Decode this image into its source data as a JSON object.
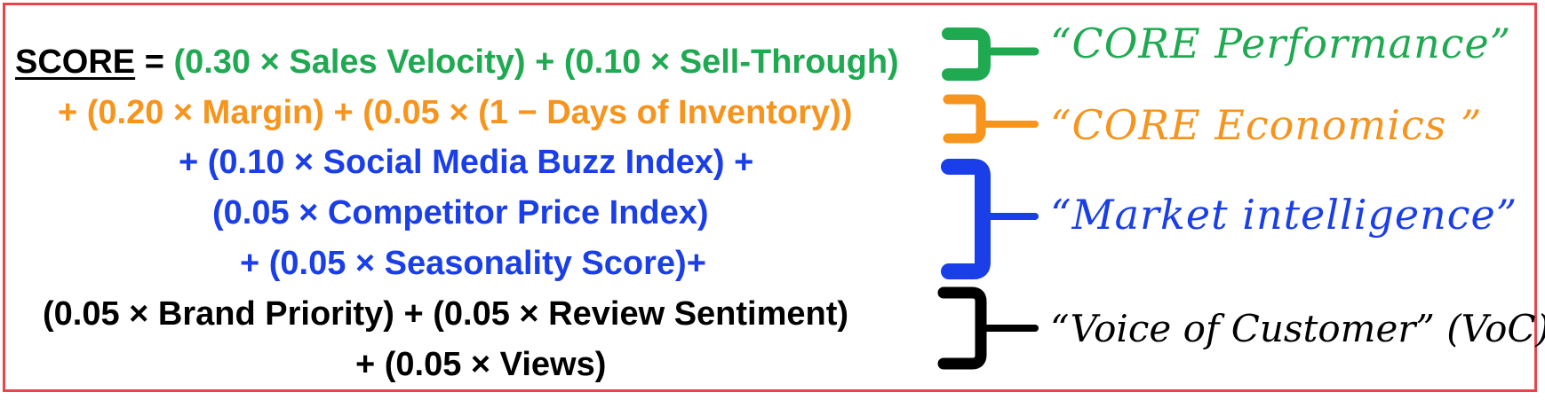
{
  "formula": {
    "score_label": "SCORE",
    "equals": " = ",
    "line1_terms": "(0.30 × Sales Velocity) + (0.10 × Sell-Through)",
    "line2": "+ (0.20 × Margin) + (0.05 × (1 − Days of Inventory))",
    "line3": "+ (0.10 × Social Media Buzz Index) +",
    "line4": "(0.05 × Competitor Price Index)",
    "line5": "+ (0.05 × Seasonality Score)+",
    "line6": "(0.05 × Brand Priority) + (0.05 × Review Sentiment)",
    "line7": "+ (0.05 × Views)"
  },
  "groups": [
    {
      "label": "“CORE Performance”",
      "color": "#1faa52"
    },
    {
      "label": "“CORE Economics ”",
      "color": "#f7941d"
    },
    {
      "label": "“Market intelligence”",
      "color": "#1a3ee8"
    },
    {
      "label": "“Voice of Customer” (VoC)",
      "color": "#000000"
    }
  ],
  "colors": {
    "border": "#e8444a",
    "score_text": "#000000"
  }
}
